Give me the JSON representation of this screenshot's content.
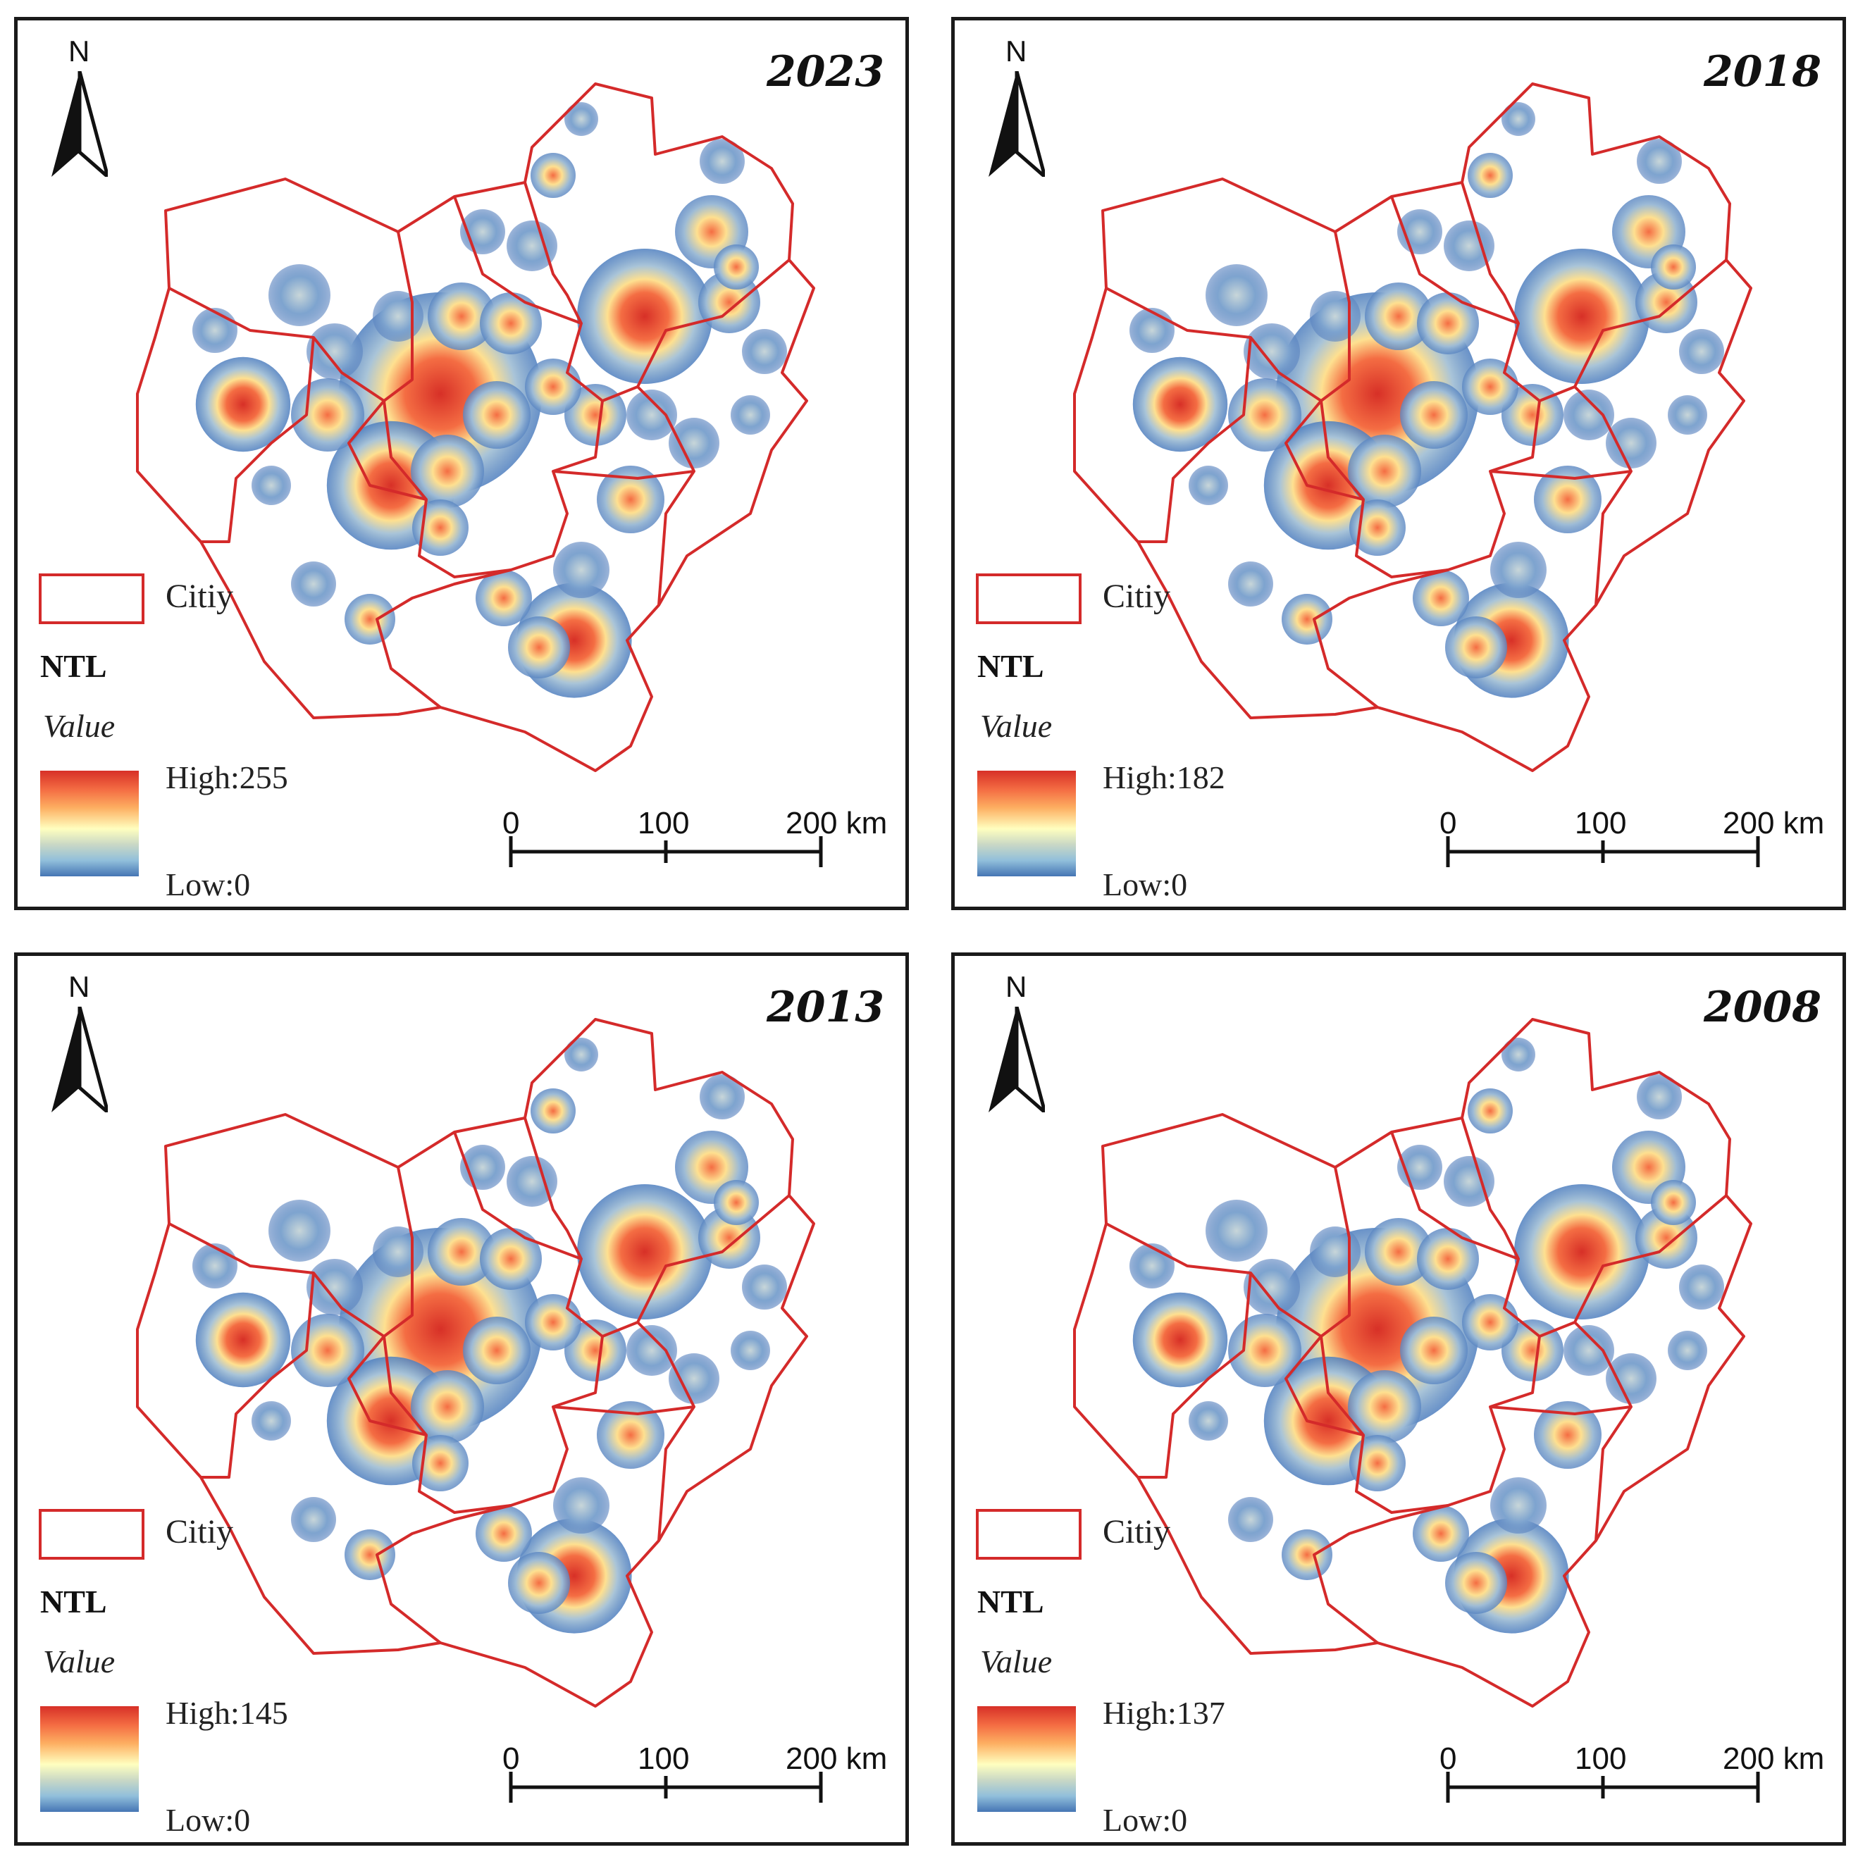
{
  "colors": {
    "boundary": "#d42a2a",
    "ramp_high": "#d73027",
    "ramp_mid": "#ffffbf",
    "ramp_low": "#4575b4",
    "background": "#ffffff"
  },
  "north": {
    "label": "N",
    "icon": "north-arrow-icon"
  },
  "legend": {
    "city_label": "Citiy",
    "ntl_label": "NTL",
    "value_label": "Value"
  },
  "scale": {
    "labels": [
      "0",
      "100",
      "200 km"
    ]
  },
  "panels": [
    {
      "year": "2023",
      "high": "High:255",
      "low": "Low:0"
    },
    {
      "year": "2018",
      "high": "High:182",
      "low": "Low:0"
    },
    {
      "year": "2013",
      "high": "High:145",
      "low": "Low:0"
    },
    {
      "year": "2008",
      "high": "High:137",
      "low": "Low:0"
    }
  ]
}
